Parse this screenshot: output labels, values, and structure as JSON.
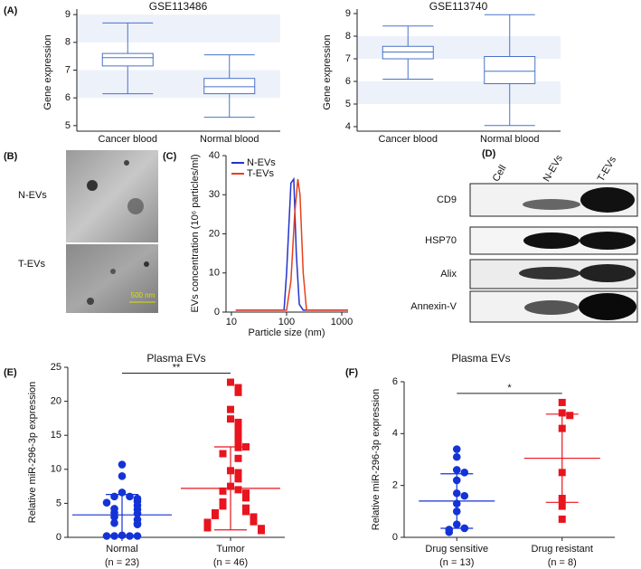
{
  "chart_data": [
    {
      "type": "box",
      "panel": "(A)",
      "title": "GSE113486",
      "ylabel": "Gene expression",
      "categories": [
        "Cancer blood",
        "Normal blood"
      ],
      "min": [
        6.15,
        5.3
      ],
      "q1": [
        7.15,
        6.15
      ],
      "median": [
        7.45,
        6.4
      ],
      "q3": [
        7.6,
        6.7
      ],
      "max": [
        8.7,
        7.55
      ],
      "ylim": [
        4.8,
        9.2
      ],
      "yticks": [
        5,
        6,
        7,
        8,
        9
      ],
      "bands": true,
      "band_color": "#edf1fa",
      "color": "#4a72c8"
    },
    {
      "type": "box",
      "title": "GSE113740",
      "ylabel": "Gene expression",
      "categories": [
        "Cancer blood",
        "Normal blood"
      ],
      "min": [
        6.1,
        4.05
      ],
      "q1": [
        7.0,
        5.9
      ],
      "median": [
        7.3,
        6.45
      ],
      "q3": [
        7.55,
        7.1
      ],
      "max": [
        8.45,
        8.95
      ],
      "ylim": [
        3.8,
        9.2
      ],
      "yticks": [
        4,
        5,
        6,
        7,
        8,
        9
      ],
      "bands": true,
      "band_color": "#edf1fa",
      "color": "#4a72c8"
    },
    {
      "type": "image",
      "panel": "(B)",
      "labels": [
        "N-EVs",
        "T-EVs"
      ],
      "scale_bar": "500 nm"
    },
    {
      "type": "line",
      "panel": "(C)",
      "xlabel": "Particle size (nm)",
      "ylabel": "EVs concentration (10⁶ particles/ml)",
      "series": [
        {
          "name": "N-EVs",
          "color": "#2233cc",
          "x": [
            12,
            90,
            100,
            120,
            135,
            150,
            170,
            200,
            1300
          ],
          "values": [
            0.5,
            0.5,
            10,
            33,
            34,
            15,
            2,
            0.5,
            0.5
          ]
        },
        {
          "name": "T-EVs",
          "color": "#e8401c",
          "x": [
            12,
            100,
            120,
            140,
            160,
            175,
            200,
            230,
            1300
          ],
          "values": [
            0.5,
            0.5,
            8,
            25,
            34,
            30,
            10,
            0.5,
            0.5
          ]
        }
      ],
      "xlim": [
        8,
        1300
      ],
      "xticks": [
        10,
        100,
        1000
      ],
      "log_x": true,
      "ylim": [
        0,
        40
      ],
      "yticks": [
        0,
        10,
        20,
        30,
        40
      ],
      "legend": "upper left"
    },
    {
      "type": "blot",
      "panel": "(D)",
      "lanes": [
        "Cell",
        "N-EVs",
        "T-EVs"
      ],
      "proteins": [
        "CD9",
        "HSP70",
        "Alix",
        "Annexin-V"
      ]
    },
    {
      "type": "dot",
      "panel": "(E)",
      "title": "Plasma EVs",
      "ylabel": "Relative miR-296-3p expression",
      "categories": [
        "Normal",
        "Tumor"
      ],
      "category_notes": [
        "(n = 23)",
        "(n = 46)"
      ],
      "significance": "**",
      "groups": [
        {
          "color": "#1433d6",
          "marker": "circle",
          "mean": 3.3,
          "sd": 3.0,
          "values": [
            10.7,
            9.0,
            6.6,
            6.0,
            6.0,
            5.7,
            5.3,
            5.1,
            4.7,
            4.2,
            4.1,
            3.6,
            3.5,
            3.0,
            2.6,
            2.1,
            2.0,
            1.9,
            0.3,
            0.2,
            0.2,
            0.2,
            0.2
          ]
        },
        {
          "color": "#e8141e",
          "marker": "square",
          "mean": 7.2,
          "sd": 6.1,
          "values": [
            22.8,
            22.0,
            21.3,
            18.8,
            17.4,
            16.9,
            16.0,
            15.3,
            14.3,
            13.8,
            13.2,
            13.3,
            12.3,
            11.6,
            9.8,
            9.5,
            8.6,
            7.5,
            7.0,
            6.8,
            6.5,
            6.2,
            5.8,
            5.2,
            4.9,
            4.6,
            4.3,
            4.0,
            3.8,
            3.6,
            3.4,
            3.2,
            3.0,
            2.9,
            2.7,
            2.5,
            2.3,
            2.2,
            2.0,
            1.9,
            1.7,
            1.5,
            1.4,
            1.3,
            1.2,
            1.0
          ]
        }
      ],
      "ylim": [
        0,
        25
      ],
      "yticks": [
        0,
        5,
        10,
        15,
        20,
        25
      ]
    },
    {
      "type": "dot",
      "panel": "(F)",
      "title": "Plasma EVs",
      "ylabel": "Relative miR-296-3p expression",
      "categories": [
        "Drug sensitive",
        "Drug resistant"
      ],
      "category_notes": [
        "(n = 13)",
        "(n = 8)"
      ],
      "significance": "*",
      "groups": [
        {
          "color": "#1433d6",
          "marker": "circle",
          "mean": 1.4,
          "sd": 1.05,
          "values": [
            3.4,
            3.1,
            2.6,
            2.5,
            2.2,
            1.7,
            1.6,
            1.3,
            1.0,
            0.5,
            0.35,
            0.3,
            0.2
          ]
        },
        {
          "color": "#e8141e",
          "marker": "square",
          "mean": 3.05,
          "sd": 1.7,
          "values": [
            5.2,
            4.8,
            4.7,
            4.2,
            2.5,
            1.5,
            1.2,
            0.7
          ]
        }
      ],
      "ylim": [
        0,
        6
      ],
      "yticks": [
        0,
        2,
        4,
        6
      ]
    }
  ]
}
